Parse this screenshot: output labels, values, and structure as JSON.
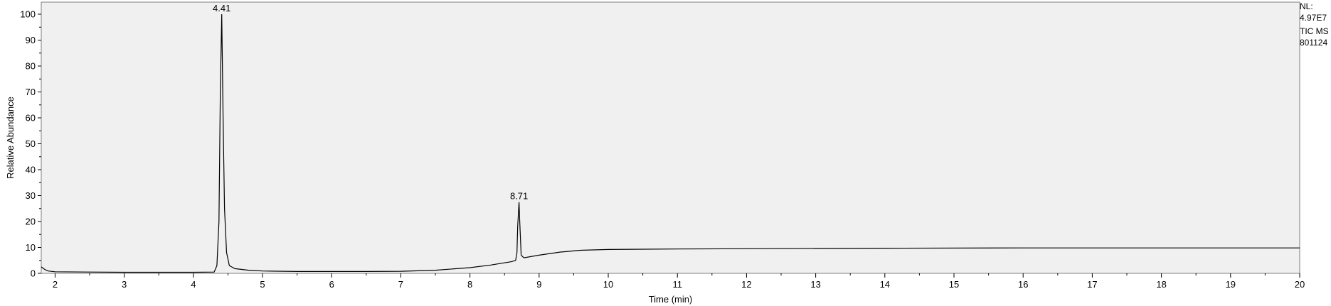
{
  "chart_data": {
    "type": "line",
    "xlabel": "Time (min)",
    "ylabel": "Relative Abundance",
    "xlim": [
      1.8,
      20
    ],
    "ylim": [
      0,
      100
    ],
    "x_ticks": [
      2,
      3,
      4,
      5,
      6,
      7,
      8,
      9,
      10,
      11,
      12,
      13,
      14,
      15,
      16,
      17,
      18,
      19,
      20
    ],
    "y_ticks": [
      0,
      10,
      20,
      30,
      40,
      50,
      60,
      70,
      80,
      90,
      100
    ],
    "grid": false,
    "background": "#f0f0f0",
    "line_color": "#000000",
    "peaks": [
      {
        "label": "4.41",
        "x": 4.41,
        "y": 100
      },
      {
        "label": "8.71",
        "x": 8.71,
        "y": 27.5
      }
    ],
    "series": [
      {
        "points": [
          [
            1.8,
            2.5
          ],
          [
            1.85,
            1.5
          ],
          [
            1.9,
            0.9
          ],
          [
            2.0,
            0.6
          ],
          [
            2.5,
            0.5
          ],
          [
            3.0,
            0.4
          ],
          [
            3.5,
            0.4
          ],
          [
            4.0,
            0.4
          ],
          [
            4.3,
            0.5
          ],
          [
            4.34,
            3
          ],
          [
            4.37,
            20
          ],
          [
            4.39,
            70
          ],
          [
            4.41,
            100
          ],
          [
            4.43,
            60
          ],
          [
            4.45,
            25
          ],
          [
            4.48,
            8
          ],
          [
            4.52,
            3
          ],
          [
            4.6,
            1.8
          ],
          [
            4.8,
            1.2
          ],
          [
            5.0,
            0.9
          ],
          [
            5.5,
            0.7
          ],
          [
            6.0,
            0.7
          ],
          [
            6.5,
            0.7
          ],
          [
            7.0,
            0.8
          ],
          [
            7.5,
            1.2
          ],
          [
            8.0,
            2.2
          ],
          [
            8.3,
            3.2
          ],
          [
            8.6,
            4.5
          ],
          [
            8.66,
            5
          ],
          [
            8.68,
            8
          ],
          [
            8.69,
            18
          ],
          [
            8.71,
            27.5
          ],
          [
            8.72,
            20
          ],
          [
            8.74,
            7
          ],
          [
            8.78,
            6
          ],
          [
            9.0,
            7
          ],
          [
            9.3,
            8.2
          ],
          [
            9.6,
            8.9
          ],
          [
            10.0,
            9.2
          ],
          [
            11.0,
            9.4
          ],
          [
            12.0,
            9.5
          ],
          [
            14.0,
            9.7
          ],
          [
            16.0,
            9.8
          ],
          [
            18.0,
            9.8
          ],
          [
            20.0,
            9.8
          ]
        ]
      }
    ]
  },
  "side_info": {
    "lines": [
      "NL:",
      "4.97E7",
      "TIC  MS",
      "801124"
    ]
  }
}
